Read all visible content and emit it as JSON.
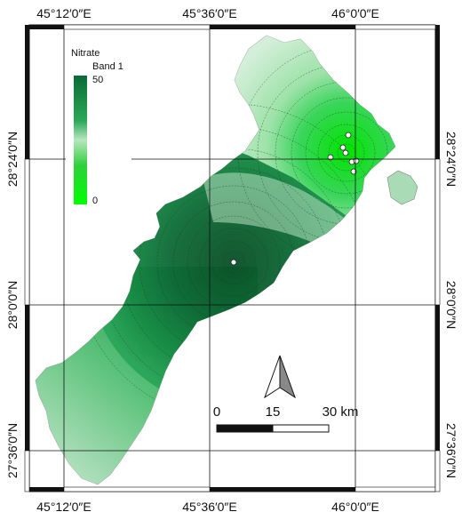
{
  "legend": {
    "title": "Nitrate",
    "band": "Band 1",
    "max_label": "50",
    "min_label": "0",
    "color_high": "#0b6a36",
    "color_low": "#00ff00"
  },
  "axes": {
    "top": [
      "45°12′0″E",
      "45°36′0″E",
      "46°0′0″E"
    ],
    "bottom": [
      "45°12′0″E",
      "45°36′0″E",
      "46°0′0″E"
    ],
    "left": [
      "28°24′0″N",
      "28°0′0″N",
      "27°36′0″N"
    ],
    "right": [
      "28°24′0″N",
      "28°0′0″N",
      "27°36′0″N"
    ]
  },
  "scale_bar": {
    "labels": [
      "0",
      "15",
      "30 km"
    ]
  },
  "north_arrow": {
    "icon": "north-arrow-icon"
  },
  "colors": {
    "region_light": "#ccecd6",
    "region_mid": "#4bc46e",
    "region_dark": "#0e5f33",
    "hotspot_bright": "#1ef01e"
  }
}
